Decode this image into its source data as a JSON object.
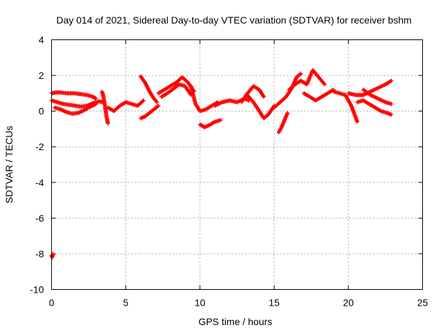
{
  "chart_data": {
    "type": "scatter",
    "title": "Day 014 of 2021, Sidereal Day-to-day VTEC variation (SDTVAR) for receiver bshm",
    "xlabel": "GPS time / hours",
    "ylabel": "SDTVAR / TECUs",
    "xlim": [
      0,
      25
    ],
    "ylim": [
      -10,
      4
    ],
    "xticks": [
      0,
      5,
      10,
      15,
      20,
      25
    ],
    "yticks": [
      -10,
      -8,
      -6,
      -4,
      -2,
      0,
      2,
      4
    ],
    "grid": true,
    "marker": "+",
    "color": "#ff0000",
    "segments": [
      {
        "name": "cluster-early-a",
        "x": [
          0.0,
          0.3,
          0.6,
          1.0,
          1.5,
          2.0,
          2.4,
          2.8,
          3.0
        ],
        "y": [
          1.0,
          1.05,
          1.05,
          1.0,
          1.0,
          0.95,
          0.9,
          0.8,
          0.7
        ]
      },
      {
        "name": "cluster-early-b",
        "x": [
          0.0,
          0.4,
          0.8,
          1.2,
          1.6,
          2.0,
          2.4,
          2.8,
          3.2,
          3.5
        ],
        "y": [
          0.6,
          0.5,
          0.4,
          0.35,
          0.3,
          0.25,
          0.3,
          0.45,
          0.55,
          0.5
        ]
      },
      {
        "name": "cluster-early-c",
        "x": [
          0.2,
          0.6,
          1.0,
          1.4,
          1.8,
          2.2,
          2.6,
          3.0
        ],
        "y": [
          0.2,
          0.1,
          -0.05,
          -0.15,
          -0.1,
          0.05,
          0.25,
          0.4
        ]
      },
      {
        "name": "isolated-dip",
        "x": [
          0.0,
          0.05,
          0.1
        ],
        "y": [
          -8.1,
          -8.2,
          -8.0
        ]
      },
      {
        "name": "cluster-4h",
        "x": [
          3.4,
          3.5,
          3.6,
          3.7,
          3.8
        ],
        "y": [
          1.1,
          0.8,
          0.3,
          -0.3,
          -0.7
        ]
      },
      {
        "name": "cluster-4-6h",
        "x": [
          3.8,
          4.2,
          4.6,
          5.0,
          5.4,
          5.8,
          6.2
        ],
        "y": [
          0.2,
          0.0,
          0.3,
          0.5,
          0.4,
          0.3,
          0.6
        ]
      },
      {
        "name": "cluster-6-7h-rise",
        "x": [
          6.0,
          6.3,
          6.6,
          6.9,
          7.1
        ],
        "y": [
          1.95,
          1.6,
          1.1,
          0.7,
          0.5
        ]
      },
      {
        "name": "cluster-6-7h-low",
        "x": [
          6.0,
          6.3,
          6.6,
          6.9,
          7.2
        ],
        "y": [
          -0.4,
          -0.3,
          -0.1,
          0.1,
          0.3
        ]
      },
      {
        "name": "cluster-7-9h",
        "x": [
          7.2,
          7.6,
          8.0,
          8.4,
          8.8,
          9.2,
          9.6
        ],
        "y": [
          1.0,
          1.2,
          1.4,
          1.6,
          1.9,
          1.6,
          1.1
        ]
      },
      {
        "name": "cluster-7-9h-b",
        "x": [
          7.4,
          7.8,
          8.2,
          8.6,
          9.0,
          9.4
        ],
        "y": [
          0.8,
          1.0,
          1.25,
          1.5,
          1.4,
          0.9
        ]
      },
      {
        "name": "cluster-9-11h",
        "x": [
          9.4,
          9.7,
          10.0,
          10.4,
          10.8,
          11.2
        ],
        "y": [
          1.4,
          0.4,
          0.0,
          0.1,
          0.3,
          0.5
        ]
      },
      {
        "name": "cluster-dip-10h",
        "x": [
          10.0,
          10.3,
          10.6,
          11.0,
          11.4
        ],
        "y": [
          -0.75,
          -0.9,
          -0.8,
          -0.6,
          -0.5
        ]
      },
      {
        "name": "cluster-11-13h",
        "x": [
          11.0,
          11.5,
          12.0,
          12.5,
          13.0,
          13.3
        ],
        "y": [
          0.3,
          0.5,
          0.6,
          0.5,
          0.7,
          0.6
        ]
      },
      {
        "name": "cluster-13-14h-rise",
        "x": [
          12.8,
          13.2,
          13.6,
          14.0,
          14.3
        ],
        "y": [
          0.5,
          1.0,
          1.4,
          1.2,
          0.8
        ]
      },
      {
        "name": "cluster-13-15h",
        "x": [
          13.2,
          13.6,
          14.0,
          14.3,
          14.6,
          15.0
        ],
        "y": [
          0.9,
          0.5,
          0.0,
          -0.4,
          -0.2,
          0.3
        ]
      },
      {
        "name": "cluster-15-16h-dip",
        "x": [
          15.3,
          15.5,
          15.7,
          15.9
        ],
        "y": [
          -1.2,
          -0.9,
          -0.5,
          -0.1
        ]
      },
      {
        "name": "cluster-15-17h",
        "x": [
          15.0,
          15.4,
          15.8,
          16.2,
          16.5,
          16.8
        ],
        "y": [
          0.2,
          0.5,
          0.8,
          1.3,
          1.9,
          2.1
        ]
      },
      {
        "name": "cluster-16-18h",
        "x": [
          16.0,
          16.4,
          16.8,
          17.2,
          17.6,
          18.0,
          18.4
        ],
        "y": [
          1.2,
          1.5,
          1.7,
          1.5,
          2.3,
          1.9,
          1.5
        ]
      },
      {
        "name": "cluster-17-19h",
        "x": [
          17.0,
          17.4,
          17.8,
          18.2,
          18.6,
          19.0
        ],
        "y": [
          1.0,
          0.8,
          0.6,
          0.8,
          1.0,
          1.2
        ]
      },
      {
        "name": "cluster-19-21h",
        "x": [
          19.0,
          19.4,
          19.8,
          20.2,
          20.6
        ],
        "y": [
          1.1,
          1.0,
          0.9,
          0.3,
          -0.6
        ]
      },
      {
        "name": "cluster-20-23h",
        "x": [
          20.0,
          20.5,
          21.0,
          21.5,
          22.0,
          22.5,
          22.9
        ],
        "y": [
          1.0,
          0.9,
          0.9,
          1.1,
          1.3,
          1.5,
          1.7
        ]
      },
      {
        "name": "cluster-20-23h-b",
        "x": [
          20.6,
          21.0,
          21.4,
          21.8,
          22.2,
          22.6,
          22.9
        ],
        "y": [
          0.5,
          0.6,
          0.4,
          0.2,
          0.0,
          -0.1,
          -0.2
        ]
      },
      {
        "name": "cluster-20-23h-c",
        "x": [
          21.0,
          21.5,
          22.0,
          22.5,
          22.9
        ],
        "y": [
          1.2,
          0.9,
          0.7,
          0.5,
          0.4
        ]
      }
    ]
  }
}
